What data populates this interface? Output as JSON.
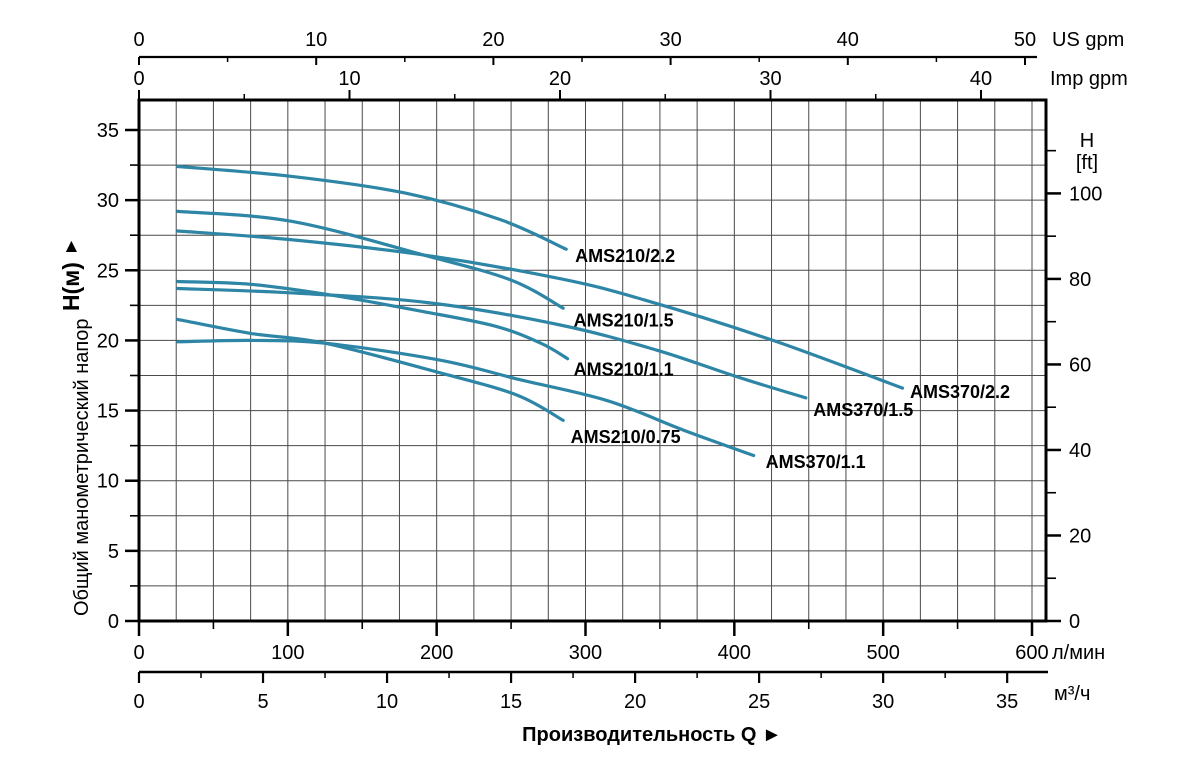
{
  "page": {
    "background": "#ffffff"
  },
  "chart_data": {
    "type": "line",
    "title": "",
    "curve_color": "#2E86A6",
    "grid": {
      "on": true,
      "q_step": 25,
      "q_max": 600,
      "h_step": 2.5,
      "h_max": 35
    },
    "x_axis_bottom_title": {
      "text": "Производительность Q",
      "arrow": "►"
    },
    "y_axis_left_title": {
      "text": "Общий манометрический напор",
      "h_label": "H(м)",
      "arrow": "▲"
    },
    "axes": {
      "us_gpm": {
        "unit": "US gpm",
        "major_ticks": [
          0,
          10,
          20,
          30,
          40,
          50
        ],
        "minor_ticks": [
          5,
          15,
          25,
          35,
          45
        ]
      },
      "imp_gpm": {
        "unit": "Imp gpm",
        "major_ticks": [
          0,
          10,
          20,
          30,
          40
        ],
        "minor_ticks": [
          5,
          15,
          25,
          35
        ]
      },
      "l_min": {
        "unit": "л/мин",
        "major_ticks": [
          0,
          100,
          200,
          300,
          400,
          500,
          600
        ],
        "minor_ticks": [
          50,
          150,
          250,
          350,
          450,
          550
        ]
      },
      "m3_h": {
        "unit": "м³/ч",
        "major_ticks": [
          0,
          5,
          10,
          15,
          20,
          25,
          30,
          35
        ],
        "minor_ticks": [
          2.5,
          7.5,
          12.5,
          17.5,
          22.5,
          27.5,
          32.5
        ]
      },
      "h_m": {
        "unit": "",
        "major_ticks": [
          0,
          5,
          10,
          15,
          20,
          25,
          30,
          35
        ],
        "minor_ticks": [
          2.5,
          7.5,
          12.5,
          17.5,
          22.5,
          27.5,
          32.5
        ]
      },
      "h_ft": {
        "unit_lines": [
          "H",
          "[ft]"
        ],
        "major_ticks": [
          0,
          20,
          40,
          60,
          80,
          100
        ],
        "minor_ticks": [
          10,
          30,
          50,
          70,
          90,
          110
        ]
      }
    },
    "axis_ranges": {
      "q_l_min": [
        0,
        609
      ],
      "h_m": [
        0,
        37.1
      ],
      "us_gpm_ruler": [
        0,
        50
      ],
      "imp_gpm_ruler": [
        0,
        40
      ]
    },
    "series": [
      {
        "name": "AMS210/2.2",
        "points": [
          [
            26,
            32.4
          ],
          [
            102,
            31.7
          ],
          [
            179,
            30.5
          ],
          [
            243,
            28.6
          ],
          [
            287,
            26.5
          ]
        ],
        "label_at": [
          293,
          25.6
        ]
      },
      {
        "name": "AMS210/1.5",
        "points": [
          [
            26,
            29.2
          ],
          [
            102,
            28.5
          ],
          [
            191,
            26.1
          ],
          [
            250,
            24.3
          ],
          [
            285,
            22.3
          ]
        ],
        "label_at": [
          292,
          21.0
        ]
      },
      {
        "name": "AMS370/2.2",
        "points": [
          [
            26,
            27.8
          ],
          [
            100,
            27.2
          ],
          [
            191,
            26.1
          ],
          [
            283,
            24.4
          ],
          [
            339,
            22.9
          ],
          [
            426,
            20.0
          ],
          [
            513,
            16.6
          ]
        ],
        "label_at": [
          518,
          15.9
        ]
      },
      {
        "name": "AMS210/1.1",
        "points": [
          [
            26,
            24.2
          ],
          [
            75,
            24.0
          ],
          [
            125,
            23.3
          ],
          [
            194,
            22.0
          ],
          [
            240,
            21.0
          ],
          [
            270,
            19.8
          ],
          [
            288,
            18.7
          ]
        ],
        "label_at": [
          292,
          17.5
        ]
      },
      {
        "name": "AMS370/1.5",
        "points": [
          [
            26,
            23.7
          ],
          [
            100,
            23.4
          ],
          [
            194,
            22.7
          ],
          [
            283,
            21.1
          ],
          [
            348,
            19.3
          ],
          [
            402,
            17.4
          ],
          [
            448,
            15.9
          ]
        ],
        "label_at": [
          453,
          14.6
        ]
      },
      {
        "name": "AMS210/0.75",
        "points": [
          [
            26,
            21.5
          ],
          [
            75,
            20.5
          ],
          [
            125,
            19.8
          ],
          [
            202,
            17.7
          ],
          [
            254,
            16.1
          ],
          [
            285,
            14.3
          ]
        ],
        "label_at": [
          290,
          12.7
        ]
      },
      {
        "name": "AMS370/1.1",
        "points": [
          [
            26,
            19.9
          ],
          [
            75,
            20.0
          ],
          [
            125,
            19.8
          ],
          [
            202,
            18.6
          ],
          [
            256,
            17.2
          ],
          [
            315,
            15.7
          ],
          [
            366,
            13.6
          ],
          [
            413,
            11.8
          ]
        ],
        "label_at": [
          421,
          10.9
        ]
      }
    ]
  }
}
